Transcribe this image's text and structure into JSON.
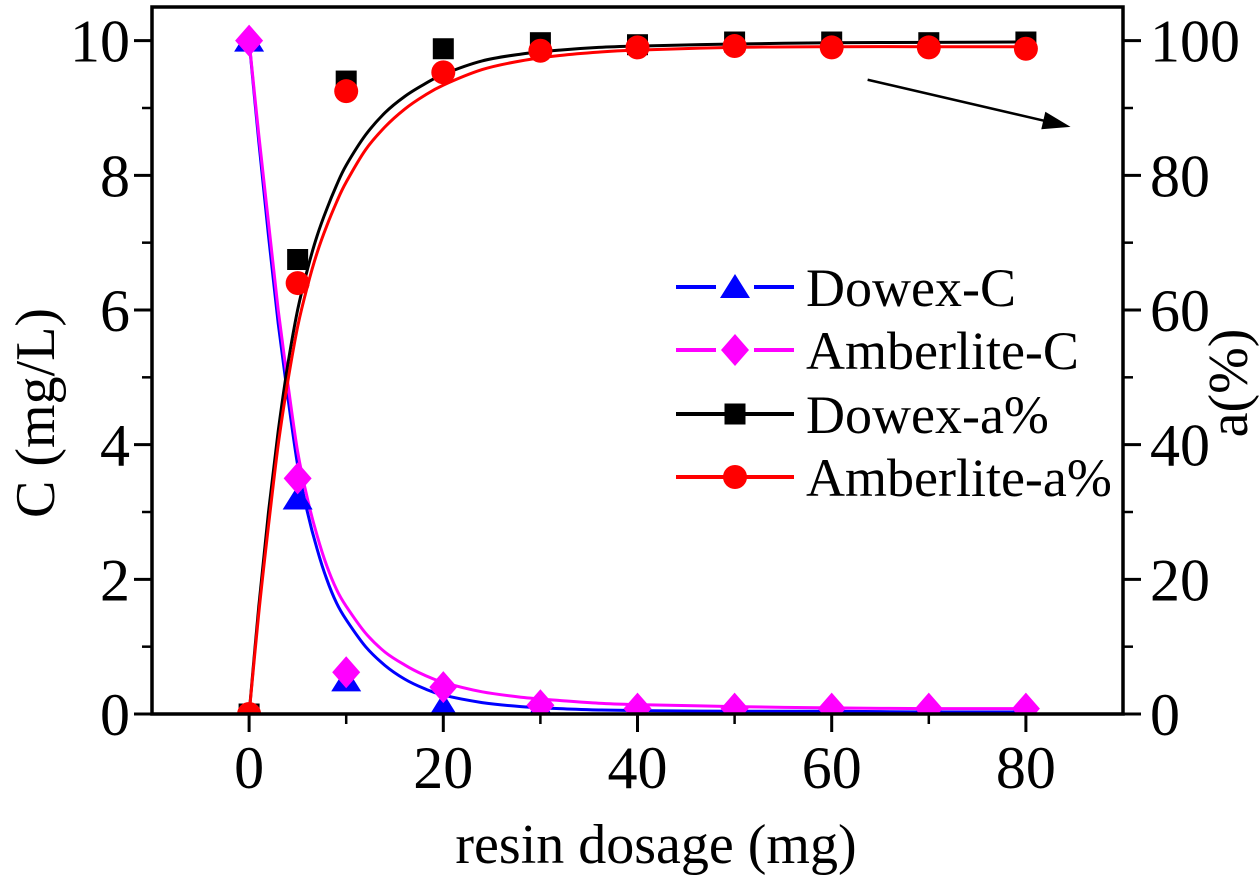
{
  "figure": {
    "background": "#ffffff",
    "frame_color": "#000000"
  },
  "chart_data": {
    "type": "scatter-line",
    "title": "",
    "x_axis": {
      "label": "resin dosage (mg)",
      "range": [
        -10,
        90
      ],
      "major_ticks": [
        0,
        20,
        40,
        60,
        80
      ],
      "minor_ticks": [
        10,
        30,
        50,
        70
      ]
    },
    "y_axis_left": {
      "label": "C (mg/L)",
      "range": [
        0,
        10.5
      ],
      "major_ticks": [
        0,
        2,
        4,
        6,
        8,
        10
      ],
      "minor_ticks": [
        1,
        3,
        5,
        7,
        9
      ]
    },
    "y_axis_right": {
      "label": "a(%)",
      "range": [
        0,
        105
      ],
      "major_ticks": [
        0,
        20,
        40,
        60,
        80,
        100
      ],
      "minor_ticks": [
        10,
        30,
        50,
        70,
        90
      ]
    },
    "x": [
      0,
      5,
      10,
      20,
      30,
      40,
      50,
      60,
      70,
      80
    ],
    "series": [
      {
        "name": "Dowex-C",
        "axis": "left",
        "color": "#0000ff",
        "marker": "triangle",
        "legend_line": "dashed",
        "values": [
          10,
          3.2,
          0.5,
          0.12,
          0.07,
          0.05,
          0.05,
          0.04,
          0.04,
          0.04
        ],
        "fit_x": [
          0,
          1,
          2,
          3,
          4,
          5,
          6,
          7,
          8,
          9,
          10,
          12,
          14,
          16,
          18,
          20,
          24,
          28,
          32,
          36,
          40,
          50,
          60,
          70,
          80
        ],
        "fit_y": [
          10,
          8.5,
          7.1,
          5.8,
          4.7,
          3.7,
          3.0,
          2.45,
          2.0,
          1.65,
          1.4,
          1.0,
          0.72,
          0.52,
          0.38,
          0.28,
          0.17,
          0.11,
          0.08,
          0.06,
          0.05,
          0.04,
          0.04,
          0.03,
          0.03
        ]
      },
      {
        "name": "Amberlite-C",
        "axis": "left",
        "color": "#ff00ff",
        "marker": "diamond",
        "legend_line": "dashed",
        "values": [
          10,
          3.5,
          0.62,
          0.4,
          0.13,
          0.08,
          0.08,
          0.08,
          0.08,
          0.08
        ],
        "fit_x": [
          0,
          1,
          2,
          3,
          4,
          5,
          6,
          7,
          8,
          9,
          10,
          12,
          14,
          16,
          18,
          20,
          24,
          28,
          32,
          36,
          40,
          50,
          60,
          70,
          80
        ],
        "fit_y": [
          10,
          8.6,
          7.3,
          6.0,
          4.9,
          3.9,
          3.2,
          2.65,
          2.2,
          1.85,
          1.6,
          1.2,
          0.92,
          0.73,
          0.58,
          0.47,
          0.33,
          0.25,
          0.2,
          0.16,
          0.14,
          0.11,
          0.09,
          0.08,
          0.08
        ]
      },
      {
        "name": "Dowex-a%",
        "axis": "right",
        "color": "#000000",
        "marker": "square",
        "legend_line": "solid",
        "values": [
          0,
          67.5,
          94,
          98.8,
          99.7,
          99.4,
          99.8,
          99.8,
          99.7,
          99.8
        ],
        "fit_x": [
          0,
          1,
          2,
          3,
          4,
          5,
          6,
          7,
          8,
          9,
          10,
          12,
          14,
          16,
          18,
          20,
          24,
          28,
          32,
          36,
          40,
          50,
          60,
          70,
          80
        ],
        "fit_y": [
          0,
          16,
          30,
          42,
          52,
          60,
          66,
          71,
          75,
          78.5,
          81.5,
          86,
          89.3,
          91.7,
          93.5,
          95,
          97,
          98,
          98.6,
          99,
          99.2,
          99.5,
          99.7,
          99.75,
          99.8
        ]
      },
      {
        "name": "Amberlite-a%",
        "axis": "right",
        "color": "#ff0000",
        "marker": "circle",
        "legend_line": "solid",
        "values": [
          0,
          64,
          92.5,
          95.3,
          98.5,
          99,
          99.2,
          99,
          99,
          98.8
        ],
        "fit_x": [
          0,
          1,
          2,
          3,
          4,
          5,
          6,
          7,
          8,
          9,
          10,
          12,
          14,
          16,
          18,
          20,
          24,
          28,
          32,
          36,
          40,
          50,
          60,
          70,
          80
        ],
        "fit_y": [
          0,
          15,
          28,
          40,
          49.5,
          57.5,
          63.5,
          68.5,
          72.5,
          76,
          79,
          83.8,
          87.2,
          89.8,
          91.8,
          93.4,
          95.7,
          97,
          97.8,
          98.3,
          98.6,
          99,
          99.1,
          99.1,
          99.1
        ]
      }
    ],
    "legend": {
      "position": "center-right",
      "entries": [
        "Dowex-C",
        "Amberlite-C",
        "Dowex-a%",
        "Amberlite-a%"
      ]
    },
    "annotations": [
      {
        "type": "arrow",
        "axis": "right",
        "meaning": "points-to-right-axis",
        "x1": 63.7,
        "y1": 94.2,
        "x2": 84.6,
        "y2": 87.2
      }
    ]
  }
}
